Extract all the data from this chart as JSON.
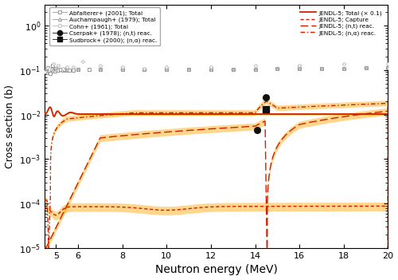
{
  "xlabel": "Neutron energy (MeV)",
  "ylabel": "Cross section (b)",
  "xlim": [
    4.5,
    20
  ],
  "ylim": [
    1e-05,
    3
  ],
  "band_color": "#FFA500",
  "band_alpha": 0.45,
  "line_color_jendl": "#cc2200",
  "gray_open": "#999999",
  "gray_cohn": "#bbbbbb",
  "dark": "#111111"
}
